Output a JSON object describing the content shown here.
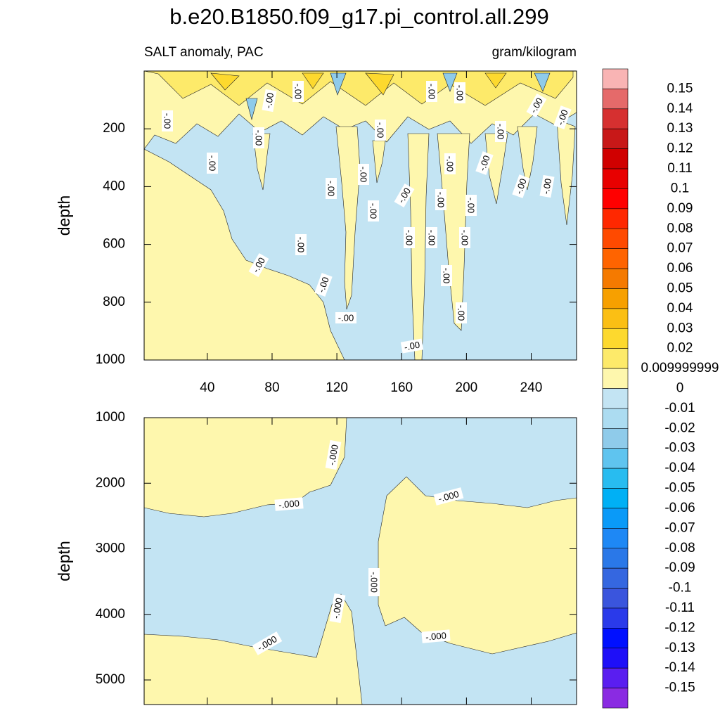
{
  "title": "b.e20.B1850.f09_g17.pi_control.all.299",
  "chart_data": [
    {
      "type": "contour",
      "subtitle_left": "SALT anomaly, PAC",
      "subtitle_right": "gram/kilogram",
      "ylabel": "depth",
      "xlim": [
        1,
        268
      ],
      "ylim": [
        0,
        1000
      ],
      "yticks": [
        200,
        400,
        600,
        800,
        1000
      ],
      "xticks": [
        40,
        80,
        120,
        160,
        200,
        240
      ],
      "contour_labels": [
        "-.00",
        "-.00",
        "-.00",
        "-.00",
        "-.00",
        "-.00",
        "-.00",
        "-.00",
        "-.00",
        "-.00",
        "-.00",
        "-.00",
        "-.00",
        "-.00",
        "-.00",
        "-.00",
        "-.00",
        "-.00",
        "-.00",
        "-.00",
        "-.00",
        "-.00",
        "-.00",
        "-.00",
        "-.00",
        "-.00",
        "-.00",
        "-.00",
        "-.00",
        "-.00",
        "-.00"
      ]
    },
    {
      "type": "contour",
      "ylabel": "depth",
      "ylim": [
        1000,
        5375
      ],
      "yticks": [
        1000,
        2000,
        3000,
        4000,
        5000
      ],
      "contour_labels": [
        "-.000",
        "-.000",
        "-.000",
        "-.000",
        "-.000",
        "-.000",
        "-.000"
      ]
    }
  ],
  "colorbar": {
    "levels": [
      0.15,
      0.14,
      0.13,
      0.12,
      0.11,
      0.1,
      0.09,
      0.08,
      0.07,
      0.06,
      0.05,
      0.04,
      0.03,
      0.02,
      0.009999999,
      0,
      -0.01,
      -0.02,
      -0.03,
      -0.04,
      -0.05,
      -0.06,
      -0.07,
      -0.08,
      -0.09,
      -0.1,
      -0.11,
      -0.12,
      -0.13,
      -0.14,
      -0.15
    ],
    "colors": [
      "#f9b4b4",
      "#e56a6a",
      "#d63030",
      "#c81818",
      "#d00000",
      "#e80000",
      "#ff0000",
      "#ff2800",
      "#ff4a00",
      "#ff6400",
      "#f57a00",
      "#f7a000",
      "#fbbf14",
      "#fdd92e",
      "#fdea6a",
      "#fef7ad",
      "#c3e4f3",
      "#acdcf1",
      "#8fcbea",
      "#5fc4ef",
      "#28bcf0",
      "#00b0f5",
      "#0a9af8",
      "#1e88f5",
      "#2a78e8",
      "#3567e0",
      "#3a55dd",
      "#2a3aea",
      "#0010ff",
      "#1e0ff8",
      "#5a1ef0",
      "#8a2be2"
    ]
  }
}
